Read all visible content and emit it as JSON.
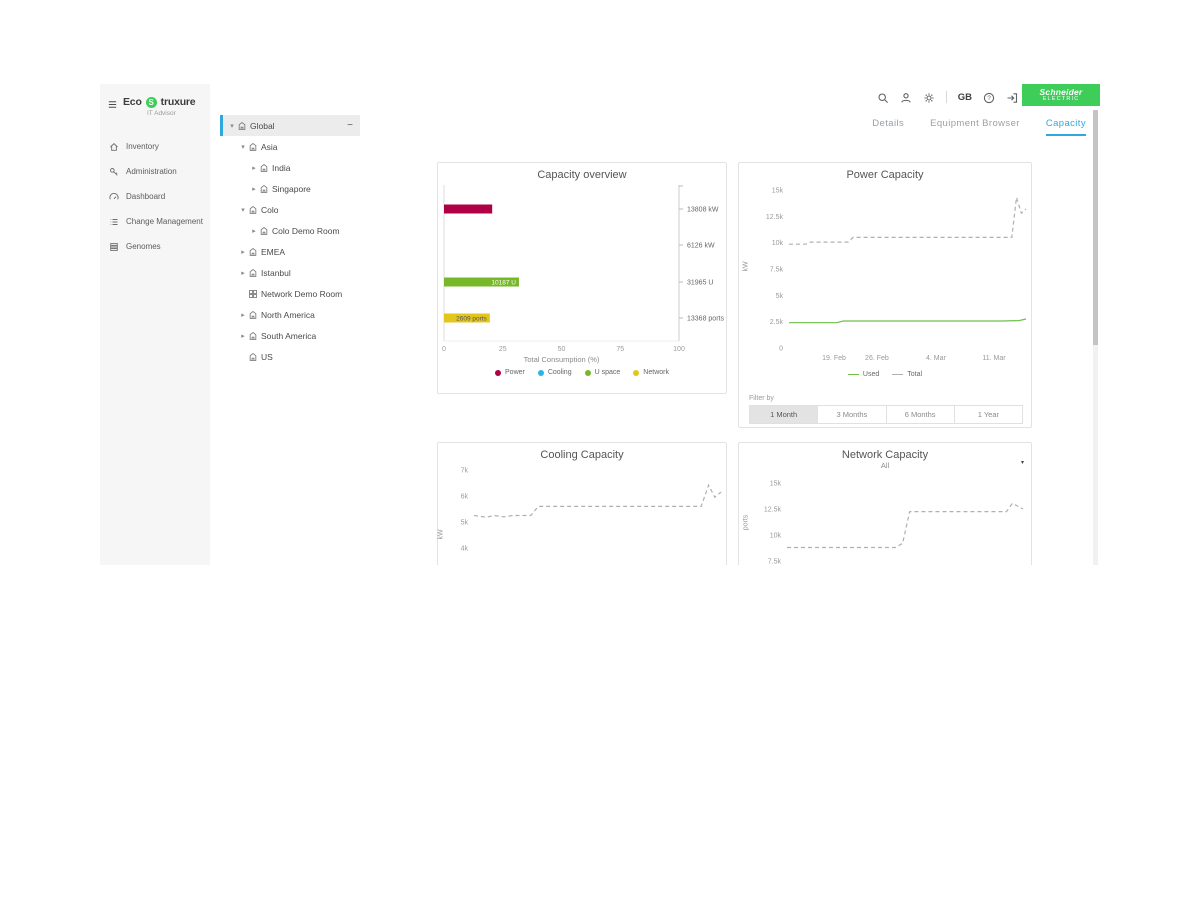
{
  "topbar": {
    "locale": "GB",
    "brand_primary": "Schneider",
    "brand_secondary": "ELECTRIC"
  },
  "logo": {
    "eco": "Eco",
    "s": "S",
    "struxure": "truxure",
    "product": "IT Advisor"
  },
  "sidebar": {
    "items": [
      {
        "icon": "home",
        "label": "Inventory"
      },
      {
        "icon": "admin",
        "label": "Administration"
      },
      {
        "icon": "dashboard",
        "label": "Dashboard"
      },
      {
        "icon": "change",
        "label": "Change Management"
      },
      {
        "icon": "genome",
        "label": "Genomes"
      }
    ]
  },
  "tree": {
    "items": [
      {
        "label": "Global",
        "level": 0,
        "chevron": "down",
        "icon": "location",
        "selected": true,
        "collapse_glyph": "−"
      },
      {
        "label": "Asia",
        "level": 1,
        "chevron": "down",
        "icon": "location"
      },
      {
        "label": "India",
        "level": 2,
        "chevron": "right",
        "icon": "location"
      },
      {
        "label": "Singapore",
        "level": 2,
        "chevron": "right",
        "icon": "location"
      },
      {
        "label": "Colo",
        "level": 1,
        "chevron": "down",
        "icon": "location"
      },
      {
        "label": "Colo Demo Room",
        "level": 2,
        "chevron": "right",
        "icon": "location"
      },
      {
        "label": "EMEA",
        "level": 1,
        "chevron": "right",
        "icon": "location"
      },
      {
        "label": "Istanbul",
        "level": 1,
        "chevron": "right",
        "icon": "location"
      },
      {
        "label": "Network Demo Room",
        "level": 1,
        "chevron": "none",
        "icon": "grid"
      },
      {
        "label": "North America",
        "level": 1,
        "chevron": "right",
        "icon": "location"
      },
      {
        "label": "South America",
        "level": 1,
        "chevron": "right",
        "icon": "location"
      },
      {
        "label": "US",
        "level": 1,
        "chevron": "none",
        "icon": "location"
      }
    ]
  },
  "tabs": [
    {
      "label": "Details",
      "active": false
    },
    {
      "label": "Equipment Browser",
      "active": false
    },
    {
      "label": "Capacity",
      "active": true
    }
  ],
  "filter": {
    "label": "Filter by",
    "options": [
      {
        "label": "1 Month",
        "active": true
      },
      {
        "label": "3 Months",
        "active": false
      },
      {
        "label": "6 Months",
        "active": false
      },
      {
        "label": "1 Year",
        "active": false
      }
    ]
  },
  "network_dropdown": {
    "value": "All",
    "chevron": "▾"
  },
  "chart_data": [
    {
      "id": "capacity_overview",
      "type": "bar",
      "orientation": "horizontal",
      "title": "Capacity overview",
      "categories": [
        "Power",
        "Cooling",
        "U space",
        "Network"
      ],
      "values": [
        20.5,
        0,
        31.9,
        19.5
      ],
      "bar_labels": [
        "",
        "",
        "10187 U",
        "2609 ports"
      ],
      "bar_label_colors": [
        "#ffffff",
        "#ffffff",
        "#ffffff",
        "#555555"
      ],
      "right_labels": [
        "13808 kW",
        "6126 kW",
        "31965 U",
        "13368 ports"
      ],
      "colors": [
        "#b00045",
        "#29b5e8",
        "#76b82a",
        "#e3c51b"
      ],
      "xlabel": "Total Consumption (%)",
      "xticks": [
        0,
        25,
        50,
        75,
        100
      ],
      "xlim": [
        0,
        100
      ],
      "legend": [
        "Power",
        "Cooling",
        "U space",
        "Network"
      ]
    },
    {
      "id": "power_capacity",
      "type": "line",
      "title": "Power Capacity",
      "ylabel": "kW",
      "ylim": [
        0,
        15000
      ],
      "yticks": [
        "0",
        "2.5k",
        "5k",
        "7.5k",
        "10k",
        "12.5k",
        "15k"
      ],
      "xticks": [
        "19. Feb",
        "26. Feb",
        "4. Mar",
        "11. Mar"
      ],
      "legend_position": "bottom",
      "series": [
        {
          "name": "Used",
          "color": "#6fbf4a",
          "dash": false,
          "points": [
            [
              0,
              2400
            ],
            [
              0.2,
              2400
            ],
            [
              0.23,
              2560
            ],
            [
              0.9,
              2560
            ],
            [
              0.97,
              2600
            ],
            [
              1,
              2750
            ]
          ]
        },
        {
          "name": "Total",
          "color": "#b0b0b0",
          "dash": true,
          "points": [
            [
              0,
              9850
            ],
            [
              0.07,
              9850
            ],
            [
              0.09,
              10050
            ],
            [
              0.25,
              10050
            ],
            [
              0.27,
              10500
            ],
            [
              0.94,
              10500
            ],
            [
              0.96,
              14300
            ],
            [
              0.98,
              12800
            ],
            [
              1,
              13200
            ]
          ]
        }
      ]
    },
    {
      "id": "cooling_capacity",
      "type": "line",
      "title": "Cooling Capacity",
      "ylabel": "kW",
      "ylim": [
        4000,
        7000
      ],
      "yticks": [
        "4k",
        "5k",
        "6k",
        "7k"
      ],
      "xticks": [],
      "series": [
        {
          "name": "Total",
          "color": "#b0b0b0",
          "dash": true,
          "points": [
            [
              0,
              5250
            ],
            [
              0.05,
              5180
            ],
            [
              0.08,
              5250
            ],
            [
              0.12,
              5200
            ],
            [
              0.16,
              5250
            ],
            [
              0.23,
              5250
            ],
            [
              0.26,
              5600
            ],
            [
              0.92,
              5600
            ],
            [
              0.95,
              6420
            ],
            [
              0.975,
              5950
            ],
            [
              1,
              6150
            ]
          ]
        }
      ]
    },
    {
      "id": "network_capacity",
      "type": "line",
      "title": "Network Capacity",
      "ylabel": "ports",
      "dropdown": "All",
      "ylim": [
        7500,
        15000
      ],
      "yticks": [
        "7.5k",
        "10k",
        "12.5k",
        "15k"
      ],
      "xticks": [],
      "series": [
        {
          "name": "Total",
          "color": "#b0b0b0",
          "dash": true,
          "points": [
            [
              0,
              8800
            ],
            [
              0.46,
              8800
            ],
            [
              0.49,
              9200
            ],
            [
              0.52,
              12250
            ],
            [
              0.93,
              12250
            ],
            [
              0.955,
              13050
            ],
            [
              1,
              12500
            ]
          ]
        }
      ]
    }
  ]
}
